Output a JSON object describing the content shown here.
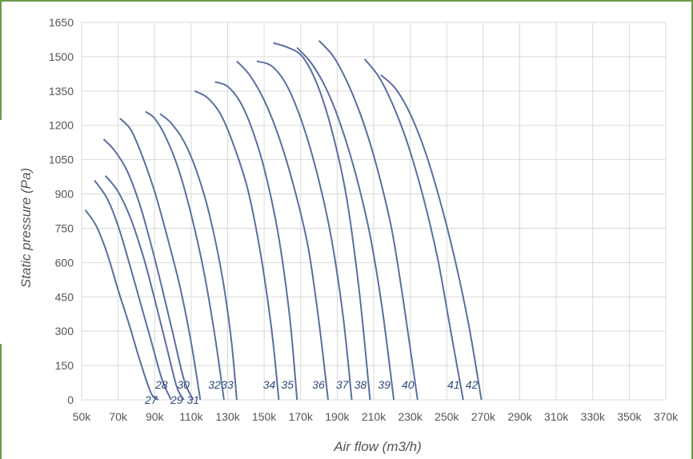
{
  "chart_data": {
    "type": "line",
    "title": "",
    "xlabel": "Air flow (m3/h)",
    "ylabel": "Static pressure (Pa)",
    "xlim": [
      50,
      370
    ],
    "ylim": [
      0,
      1650
    ],
    "x_tick_labels": [
      "50k",
      "70k",
      "90k",
      "110k",
      "130k",
      "150k",
      "170k",
      "190k",
      "210k",
      "230k",
      "250k",
      "270k",
      "290k",
      "310k",
      "330k",
      "350k",
      "370k"
    ],
    "y_tick_labels": [
      "0",
      "150",
      "300",
      "450",
      "600",
      "750",
      "900",
      "1050",
      "1200",
      "1350",
      "1500",
      "1650"
    ],
    "grid": true,
    "line_color": "#5a6fa0",
    "label_color": "#2f4a78",
    "series": [
      {
        "name": "27",
        "label_pos": "below",
        "x": [
          52,
          58,
          64,
          70,
          76,
          82,
          88,
          92
        ],
        "y": [
          830,
          760,
          640,
          480,
          330,
          170,
          30,
          0
        ]
      },
      {
        "name": "28",
        "label_pos": "above",
        "x": [
          57,
          64,
          70,
          76,
          82,
          88,
          94,
          99
        ],
        "y": [
          960,
          880,
          760,
          600,
          430,
          260,
          90,
          0
        ]
      },
      {
        "name": "29",
        "label_pos": "below",
        "x": [
          63,
          70,
          77,
          84,
          90,
          96,
          102,
          106
        ],
        "y": [
          980,
          910,
          790,
          620,
          440,
          250,
          60,
          0
        ]
      },
      {
        "name": "30",
        "label_pos": "above",
        "x": [
          62,
          68,
          75,
          82,
          88,
          94,
          100,
          106,
          111
        ],
        "y": [
          1140,
          1090,
          1000,
          850,
          680,
          490,
          290,
          90,
          0
        ]
      },
      {
        "name": "31",
        "label_pos": "below",
        "x": [
          71,
          77,
          83,
          90,
          97,
          104,
          110,
          115
        ],
        "y": [
          1230,
          1180,
          1070,
          910,
          710,
          490,
          250,
          0
        ]
      },
      {
        "name": "32",
        "label_pos": "above",
        "x": [
          85,
          90,
          96,
          103,
          110,
          117,
          123,
          128
        ],
        "y": [
          1260,
          1230,
          1150,
          1010,
          810,
          560,
          280,
          0
        ]
      },
      {
        "name": "33",
        "label_pos": "above",
        "x": [
          93,
          99,
          106,
          113,
          120,
          127,
          132,
          135
        ],
        "y": [
          1250,
          1210,
          1130,
          1000,
          810,
          540,
          260,
          0
        ]
      },
      {
        "name": "34",
        "label_pos": "above",
        "x": [
          112,
          119,
          126,
          133,
          141,
          148,
          154,
          158
        ],
        "y": [
          1350,
          1320,
          1250,
          1120,
          920,
          640,
          310,
          0
        ]
      },
      {
        "name": "35",
        "label_pos": "above",
        "x": [
          123,
          130,
          137,
          144,
          151,
          158,
          164,
          168
        ],
        "y": [
          1390,
          1370,
          1300,
          1170,
          980,
          710,
          360,
          0
        ]
      },
      {
        "name": "36",
        "label_pos": "above",
        "x": [
          135,
          142,
          150,
          158,
          166,
          174,
          180,
          185
        ],
        "y": [
          1480,
          1420,
          1310,
          1150,
          940,
          670,
          340,
          0
        ]
      },
      {
        "name": "37",
        "label_pos": "above",
        "x": [
          146,
          154,
          162,
          170,
          178,
          186,
          193,
          198
        ],
        "y": [
          1480,
          1460,
          1380,
          1230,
          1020,
          740,
          380,
          0
        ]
      },
      {
        "name": "38",
        "label_pos": "above",
        "x": [
          155,
          163,
          171,
          179,
          187,
          195,
          202,
          208
        ],
        "y": [
          1560,
          1540,
          1500,
          1380,
          1180,
          890,
          480,
          0
        ]
      },
      {
        "name": "39",
        "label_pos": "above",
        "x": [
          168,
          176,
          184,
          192,
          200,
          208,
          215,
          221
        ],
        "y": [
          1540,
          1470,
          1360,
          1200,
          990,
          720,
          380,
          0
        ]
      },
      {
        "name": "40",
        "label_pos": "above",
        "x": [
          180,
          188,
          196,
          204,
          212,
          220,
          227,
          234
        ],
        "y": [
          1570,
          1500,
          1380,
          1220,
          1010,
          740,
          390,
          0
        ]
      },
      {
        "name": "41",
        "label_pos": "above",
        "x": [
          205,
          213,
          221,
          229,
          237,
          245,
          252,
          259
        ],
        "y": [
          1490,
          1410,
          1280,
          1110,
          890,
          620,
          310,
          0
        ]
      },
      {
        "name": "42",
        "label_pos": "above",
        "x": [
          214,
          222,
          230,
          238,
          246,
          254,
          262,
          269
        ],
        "y": [
          1420,
          1360,
          1250,
          1090,
          880,
          630,
          330,
          0
        ]
      }
    ]
  }
}
